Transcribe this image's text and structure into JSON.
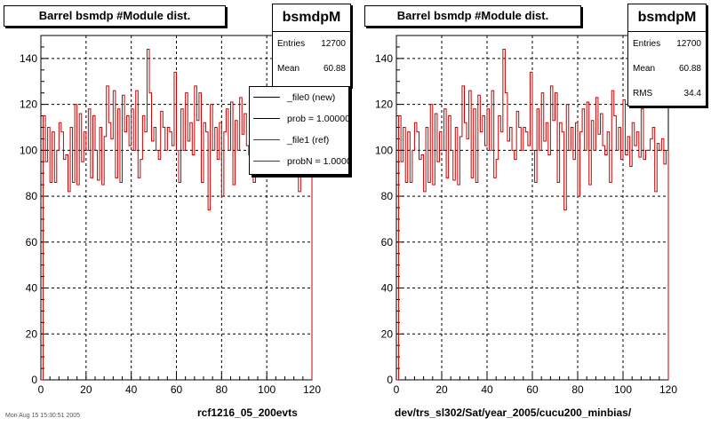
{
  "colors": {
    "ref": "#cc0000",
    "new": "#000000",
    "grid": "#000000"
  },
  "datestamp": "Mon Aug 15 15:30:51 2005",
  "panels": [
    {
      "title": "Barrel bsmdp #Module dist.",
      "caption": "rcf1216_05_200evts",
      "stats": {
        "name": "bsmdpM",
        "entries_label": "Entries",
        "entries": "12700",
        "mean_label": "Mean",
        "mean": "60.88"
      },
      "legend": [
        {
          "label": "_file0 (new)",
          "color": "#000000"
        },
        {
          "label": "prob = 1.000000",
          "color": "#000000"
        },
        {
          "label": "_file1 (ref)",
          "color": "#cc0000"
        },
        {
          "label": "probN = 1.000000",
          "color": "#cc0000"
        }
      ]
    },
    {
      "title": "Barrel bsmdp #Module dist.",
      "caption": "dev/trs_sl302/Sat/year_2005/cucu200_minbias/",
      "stats": {
        "name": "bsmdpM",
        "entries_label": "Entries",
        "entries": "12700",
        "mean_label": "Mean",
        "mean": "60.88",
        "rms_label": "RMS",
        "rms": "34.4"
      }
    }
  ],
  "chart_data": [
    {
      "type": "step",
      "title": "Barrel bsmdp #Module dist.",
      "xlabel": "rcf1216_05_200evts",
      "xlim": [
        0,
        120
      ],
      "ylim": [
        0,
        150
      ],
      "xticks": [
        0,
        20,
        40,
        60,
        80,
        100,
        120
      ],
      "yticks": [
        0,
        20,
        40,
        60,
        80,
        100,
        120,
        140
      ],
      "grid": true,
      "bin_width": 1,
      "series": [
        {
          "name": "_file1 (ref)",
          "color": "#cc0000",
          "values": [
            0,
            115,
            95,
            110,
            86,
            108,
            86,
            100,
            112,
            108,
            96,
            98,
            82,
            110,
            86,
            120,
            85,
            116,
            95,
            108,
            100,
            118,
            88,
            115,
            100,
            87,
            110,
            85,
            106,
            128,
            112,
            105,
            126,
            88,
            118,
            86,
            124,
            108,
            115,
            102,
            118,
            100,
            126,
            88,
            96,
            115,
            108,
            144,
            125,
            104,
            110,
            100,
            96,
            117,
            110,
            100,
            110,
            108,
            102,
            134,
            100,
            86,
            118,
            100,
            125,
            104,
            112,
            98,
            128,
            113,
            125,
            86,
            112,
            108,
            74,
            120,
            100,
            110,
            96,
            112,
            80,
            108,
            118,
            100,
            121,
            85,
            113,
            100,
            123,
            107,
            116,
            102,
            98,
            108,
            86,
            126,
            115,
            100,
            110,
            96,
            122,
            98,
            106,
            93,
            112,
            102,
            108,
            97,
            118,
            96,
            100,
            100,
            105,
            110,
            82,
            103,
            100,
            105,
            94,
            100
          ]
        }
      ]
    },
    {
      "type": "step",
      "title": "Barrel bsmdp #Module dist.",
      "xlabel": "dev/trs_sl302/Sat/year_2005/cucu200_minbias/",
      "xlim": [
        0,
        120
      ],
      "ylim": [
        0,
        150
      ],
      "xticks": [
        0,
        20,
        40,
        60,
        80,
        100,
        120
      ],
      "yticks": [
        0,
        20,
        40,
        60,
        80,
        100,
        120,
        140
      ],
      "grid": true,
      "bin_width": 1,
      "series": [
        {
          "name": "bsmdpM",
          "color": "#cc0000",
          "values": [
            0,
            115,
            95,
            110,
            86,
            108,
            86,
            100,
            112,
            108,
            96,
            98,
            82,
            110,
            86,
            120,
            85,
            116,
            95,
            108,
            100,
            118,
            88,
            115,
            100,
            87,
            110,
            85,
            106,
            128,
            112,
            105,
            126,
            88,
            118,
            86,
            124,
            108,
            115,
            102,
            118,
            100,
            126,
            88,
            96,
            115,
            108,
            144,
            125,
            104,
            110,
            100,
            96,
            117,
            110,
            100,
            110,
            108,
            102,
            134,
            100,
            86,
            118,
            100,
            125,
            104,
            112,
            98,
            128,
            113,
            125,
            86,
            112,
            108,
            74,
            120,
            100,
            110,
            96,
            112,
            80,
            108,
            118,
            100,
            121,
            85,
            113,
            100,
            123,
            107,
            116,
            102,
            98,
            108,
            86,
            126,
            115,
            100,
            110,
            96,
            122,
            98,
            106,
            93,
            112,
            102,
            108,
            97,
            118,
            96,
            100,
            100,
            105,
            110,
            82,
            103,
            100,
            105,
            94,
            100
          ]
        }
      ]
    }
  ]
}
